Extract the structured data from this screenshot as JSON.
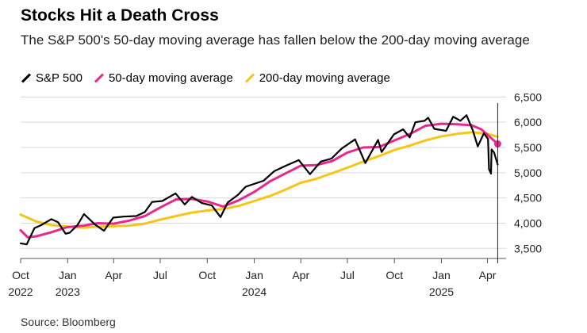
{
  "title": "Stocks Hit a Death Cross",
  "subtitle": "The S&P 500's 50-day moving average has fallen below the 200-day moving average",
  "source": "Source: Bloomberg",
  "colors": {
    "sp500": "#000000",
    "ma50": "#e8278f",
    "ma200": "#f5c518"
  },
  "chart_data": {
    "type": "line",
    "title": "Stocks Hit a Death Cross",
    "subtitle": "The S&P 500's 50-day moving average has fallen below the 200-day moving average",
    "ylim": [
      3300,
      6600
    ],
    "xlim": [
      "2022-10-01",
      "2025-04-25"
    ],
    "yticks": [
      "6,500",
      "6,000",
      "5,500",
      "5,000",
      "4,500",
      "4,000",
      "3,500"
    ],
    "ytick_values": [
      6500,
      6000,
      5500,
      5000,
      4500,
      4000,
      3500
    ],
    "xticks": [
      {
        "date": "2022-10-01",
        "label": "Oct",
        "year": "2022"
      },
      {
        "date": "2023-01-01",
        "label": "Jan",
        "year": "2023"
      },
      {
        "date": "2023-04-01",
        "label": "Apr",
        "year": ""
      },
      {
        "date": "2023-07-01",
        "label": "Jul",
        "year": ""
      },
      {
        "date": "2023-10-01",
        "label": "Oct",
        "year": ""
      },
      {
        "date": "2024-01-01",
        "label": "Jan",
        "year": "2024"
      },
      {
        "date": "2024-04-01",
        "label": "Apr",
        "year": ""
      },
      {
        "date": "2024-07-01",
        "label": "Jul",
        "year": ""
      },
      {
        "date": "2024-10-01",
        "label": "Oct",
        "year": ""
      },
      {
        "date": "2025-01-01",
        "label": "Jan",
        "year": "2025"
      },
      {
        "date": "2025-04-01",
        "label": "Apr",
        "year": ""
      }
    ],
    "grid": true,
    "legend_position": "top-left",
    "series": [
      {
        "name": "S&P 500",
        "key": "sp500",
        "points": [
          [
            "2022-10-01",
            3600
          ],
          [
            "2022-10-13",
            3580
          ],
          [
            "2022-10-28",
            3900
          ],
          [
            "2022-11-10",
            3960
          ],
          [
            "2022-11-30",
            4080
          ],
          [
            "2022-12-13",
            4020
          ],
          [
            "2022-12-28",
            3790
          ],
          [
            "2023-01-05",
            3810
          ],
          [
            "2023-01-20",
            3960
          ],
          [
            "2023-02-02",
            4180
          ],
          [
            "2023-02-24",
            3970
          ],
          [
            "2023-03-13",
            3850
          ],
          [
            "2023-03-31",
            4110
          ],
          [
            "2023-04-20",
            4130
          ],
          [
            "2023-05-15",
            4140
          ],
          [
            "2023-06-01",
            4220
          ],
          [
            "2023-06-15",
            4420
          ],
          [
            "2023-07-05",
            4440
          ],
          [
            "2023-07-31",
            4590
          ],
          [
            "2023-08-18",
            4370
          ],
          [
            "2023-09-01",
            4520
          ],
          [
            "2023-09-20",
            4400
          ],
          [
            "2023-10-10",
            4350
          ],
          [
            "2023-10-27",
            4120
          ],
          [
            "2023-11-10",
            4410
          ],
          [
            "2023-11-30",
            4560
          ],
          [
            "2023-12-15",
            4720
          ],
          [
            "2023-12-29",
            4770
          ],
          [
            "2024-01-19",
            4840
          ],
          [
            "2024-02-09",
            5030
          ],
          [
            "2024-03-01",
            5130
          ],
          [
            "2024-03-28",
            5250
          ],
          [
            "2024-04-19",
            4970
          ],
          [
            "2024-05-10",
            5220
          ],
          [
            "2024-05-31",
            5280
          ],
          [
            "2024-06-20",
            5480
          ],
          [
            "2024-07-16",
            5660
          ],
          [
            "2024-08-05",
            5190
          ],
          [
            "2024-08-30",
            5650
          ],
          [
            "2024-09-06",
            5410
          ],
          [
            "2024-09-30",
            5760
          ],
          [
            "2024-10-18",
            5860
          ],
          [
            "2024-10-31",
            5700
          ],
          [
            "2024-11-11",
            6000
          ],
          [
            "2024-11-29",
            6030
          ],
          [
            "2024-12-06",
            6090
          ],
          [
            "2024-12-18",
            5870
          ],
          [
            "2025-01-10",
            5830
          ],
          [
            "2025-01-24",
            6110
          ],
          [
            "2025-02-07",
            6030
          ],
          [
            "2025-02-19",
            6140
          ],
          [
            "2025-03-03",
            5850
          ],
          [
            "2025-03-13",
            5520
          ],
          [
            "2025-03-25",
            5780
          ],
          [
            "2025-04-02",
            5670
          ],
          [
            "2025-04-04",
            5070
          ],
          [
            "2025-04-08",
            4980
          ],
          [
            "2025-04-09",
            5460
          ],
          [
            "2025-04-14",
            5400
          ],
          [
            "2025-04-21",
            5160
          ]
        ]
      },
      {
        "name": "50-day moving average",
        "key": "ma50",
        "points": [
          [
            "2022-10-01",
            3860
          ],
          [
            "2022-10-15",
            3720
          ],
          [
            "2022-11-01",
            3740
          ],
          [
            "2022-11-30",
            3820
          ],
          [
            "2022-12-31",
            3920
          ],
          [
            "2023-02-01",
            3950
          ],
          [
            "2023-03-01",
            4000
          ],
          [
            "2023-04-01",
            3990
          ],
          [
            "2023-05-01",
            4050
          ],
          [
            "2023-06-01",
            4140
          ],
          [
            "2023-07-01",
            4310
          ],
          [
            "2023-08-01",
            4470
          ],
          [
            "2023-09-01",
            4480
          ],
          [
            "2023-10-01",
            4430
          ],
          [
            "2023-11-01",
            4330
          ],
          [
            "2023-12-01",
            4450
          ],
          [
            "2024-01-01",
            4620
          ],
          [
            "2024-02-01",
            4830
          ],
          [
            "2024-03-01",
            4980
          ],
          [
            "2024-04-01",
            5140
          ],
          [
            "2024-05-01",
            5150
          ],
          [
            "2024-06-01",
            5230
          ],
          [
            "2024-07-01",
            5400
          ],
          [
            "2024-08-01",
            5500
          ],
          [
            "2024-09-01",
            5510
          ],
          [
            "2024-10-01",
            5640
          ],
          [
            "2024-11-01",
            5770
          ],
          [
            "2024-12-01",
            5930
          ],
          [
            "2025-01-01",
            5970
          ],
          [
            "2025-02-01",
            5960
          ],
          [
            "2025-03-01",
            5940
          ],
          [
            "2025-03-20",
            5860
          ],
          [
            "2025-04-21",
            5570
          ]
        ]
      },
      {
        "name": "200-day moving average",
        "key": "ma200",
        "points": [
          [
            "2022-10-01",
            4170
          ],
          [
            "2022-11-01",
            4030
          ],
          [
            "2022-12-01",
            3960
          ],
          [
            "2023-01-01",
            3930
          ],
          [
            "2023-02-01",
            3910
          ],
          [
            "2023-03-01",
            3930
          ],
          [
            "2023-04-01",
            3940
          ],
          [
            "2023-05-01",
            3950
          ],
          [
            "2023-06-01",
            3990
          ],
          [
            "2023-07-01",
            4070
          ],
          [
            "2023-08-01",
            4140
          ],
          [
            "2023-09-01",
            4210
          ],
          [
            "2023-10-01",
            4250
          ],
          [
            "2023-11-01",
            4280
          ],
          [
            "2023-12-01",
            4340
          ],
          [
            "2024-01-01",
            4440
          ],
          [
            "2024-02-01",
            4540
          ],
          [
            "2024-03-01",
            4660
          ],
          [
            "2024-04-01",
            4800
          ],
          [
            "2024-05-01",
            4880
          ],
          [
            "2024-06-01",
            4990
          ],
          [
            "2024-07-01",
            5100
          ],
          [
            "2024-08-01",
            5220
          ],
          [
            "2024-09-01",
            5330
          ],
          [
            "2024-10-01",
            5450
          ],
          [
            "2024-11-01",
            5540
          ],
          [
            "2024-12-01",
            5640
          ],
          [
            "2025-01-01",
            5720
          ],
          [
            "2025-02-01",
            5770
          ],
          [
            "2025-03-01",
            5800
          ],
          [
            "2025-04-01",
            5770
          ],
          [
            "2025-04-21",
            5710
          ]
        ]
      }
    ],
    "marker": {
      "date": "2025-04-21",
      "series": "ma50"
    },
    "vline": "2025-04-21"
  }
}
